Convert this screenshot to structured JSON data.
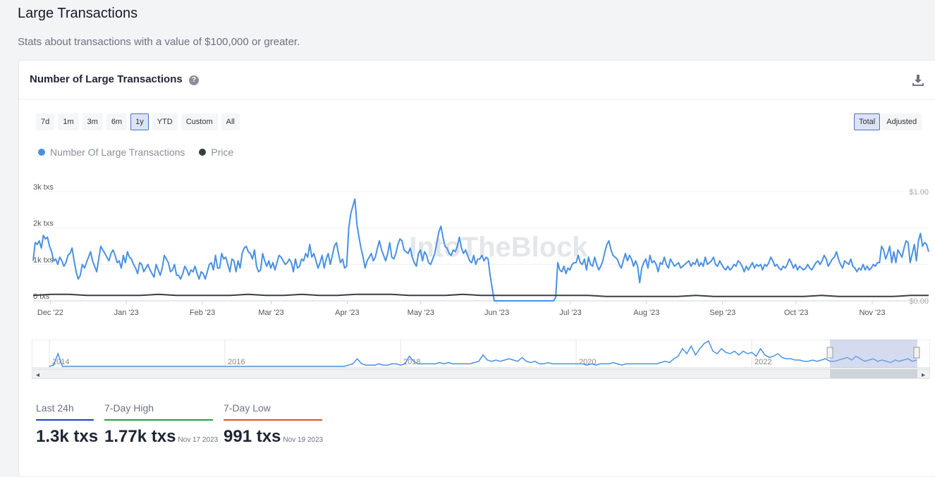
{
  "page": {
    "title": "Large Transactions",
    "subtitle": "Stats about transactions with a value of $100,000 or greater."
  },
  "card": {
    "title": "Number of Large Transactions",
    "help_icon": "question-circle-icon",
    "download_icon": "download-icon"
  },
  "ranges": [
    "7d",
    "1m",
    "3m",
    "6m",
    "1y",
    "YTD",
    "Custom",
    "All"
  ],
  "active_range": "1y",
  "modes": [
    "Total",
    "Adjusted"
  ],
  "active_mode": "Total",
  "watermark": "IntoTheBlock",
  "stats": {
    "last_24h": {
      "label": "Last 24h",
      "value": "1.3k txs",
      "color": "#1a3fd6"
    },
    "high_7d": {
      "label": "7-Day High",
      "value": "1.77k txs",
      "date": "Nov 17 2023",
      "color": "#2a9d3b"
    },
    "low_7d": {
      "label": "7-Day Low",
      "value": "991 txs",
      "date": "Nov 19 2023",
      "color": "#d9532c"
    }
  },
  "chart_data": {
    "type": "line",
    "legend": [
      {
        "name": "Number Of Large Transactions",
        "color": "#4a90e2"
      },
      {
        "name": "Price",
        "color": "#3a3d42"
      }
    ],
    "y_left": {
      "ticks": [
        "0 txs",
        "1k txs",
        "2k txs",
        "3k txs"
      ],
      "range": [
        0,
        3000
      ]
    },
    "y_right": {
      "ticks": [
        "$0.00",
        "$1.00"
      ],
      "range": [
        0,
        1
      ]
    },
    "x_ticks": [
      "Dec '22",
      "Jan '23",
      "Feb '23",
      "Mar '23",
      "Apr '23",
      "May '23",
      "Jun '23",
      "Jul '23",
      "Aug '23",
      "Sep '23",
      "Oct '23",
      "Nov '23"
    ],
    "series": [
      {
        "name": "Number Of Large Transactions",
        "color": "#4a90e2",
        "start": "2022-11-24",
        "end": "2023-11-24",
        "values": [
          1100,
          1600,
          1550,
          1650,
          1450,
          1800,
          1700,
          1750,
          1500,
          1350,
          1100,
          1150,
          1000,
          1200,
          1100,
          950,
          1050,
          1250,
          1300,
          1450,
          1100,
          800,
          600,
          700,
          1000,
          900,
          1050,
          1200,
          1350,
          1100,
          950,
          800,
          1150,
          1500,
          1400,
          1300,
          1200,
          1100,
          1300,
          1400,
          1250,
          1050,
          1100,
          900,
          1250,
          1050,
          1350,
          1200,
          1150,
          1000,
          900,
          750,
          1050,
          1000,
          800,
          900,
          1000,
          850,
          750,
          650,
          1000,
          850,
          700,
          900,
          1250,
          1150,
          1050,
          800,
          850,
          1000,
          700,
          700,
          600,
          750,
          950,
          850,
          700,
          850,
          800,
          950,
          750,
          600,
          800,
          750,
          600,
          800,
          1000,
          1050,
          850,
          1250,
          900,
          900,
          1300,
          1150,
          1200,
          1000,
          800,
          1150,
          1100,
          800,
          1100,
          900,
          1300,
          1450,
          1500,
          1350,
          1300,
          1150,
          1400,
          950,
          800,
          850,
          1300,
          1100,
          950,
          1100,
          900,
          1050,
          850,
          1050,
          1250,
          1200,
          1100,
          1000,
          1050,
          1150,
          1050,
          800,
          1150,
          900,
          950,
          1150,
          1100,
          1300,
          1200,
          1550,
          1200,
          1300,
          1100,
          900,
          1050,
          1250,
          900,
          1150,
          1300,
          1000,
          1250,
          1500,
          1600,
          1300,
          1050,
          1150,
          900,
          950,
          2000,
          2400,
          2600,
          2800,
          2100,
          1750,
          1450,
          1200,
          900,
          1100,
          1200,
          1300,
          1100,
          1200,
          1450,
          1650,
          1400,
          1250,
          1100,
          1300,
          1600,
          1200,
          1150,
          1300,
          1550,
          1700,
          1650,
          1400,
          1350,
          1300,
          1450,
          1200,
          1050,
          950,
          1300,
          1400,
          1100,
          1350,
          1250,
          1050,
          1000,
          1150,
          1300,
          1600,
          1900,
          2050,
          1750,
          1500,
          1450,
          1300,
          1250,
          1400,
          1350,
          1500,
          1750,
          1450,
          1300,
          1400,
          1250,
          1100,
          1050,
          1250,
          1000,
          1150,
          1150,
          1250,
          1100,
          1200,
          1150,
          700,
          350,
          0,
          0,
          0,
          0,
          0,
          0,
          0,
          0,
          0,
          0,
          0,
          0,
          0,
          0,
          0,
          0,
          0,
          0,
          0,
          0,
          0,
          0,
          0,
          0,
          0,
          0,
          0,
          0,
          0,
          0,
          100,
          1050,
          850,
          800,
          950,
          750,
          900,
          850,
          1000,
          1050,
          1050,
          1250,
          1050,
          1000,
          1150,
          850,
          1200,
          1000,
          950,
          1200,
          1000,
          850,
          950,
          1100,
          1350,
          1550,
          1650,
          1400,
          1250,
          1200,
          1150,
          1000,
          900,
          1100,
          1300,
          1100,
          1250,
          1150,
          950,
          1100,
          950,
          500,
          900,
          1050,
          1150,
          900,
          1250,
          1050,
          1100,
          1000,
          800,
          1050,
          1000,
          1200,
          1000,
          900,
          1150,
          1050,
          950,
          1000,
          1050,
          900,
          950,
          1000,
          1050,
          1100,
          950,
          1050,
          1000,
          1150,
          950,
          1050,
          950,
          1200,
          1000,
          1050,
          1100,
          1200,
          1000,
          950,
          1100,
          1000,
          900,
          850,
          950,
          850,
          900,
          1000,
          950,
          1100,
          1050,
          950,
          800,
          950,
          850,
          950,
          1050,
          900,
          1000,
          950,
          1000,
          850,
          1000,
          950,
          1050,
          1200,
          1100,
          950,
          1000,
          900,
          850,
          950,
          900,
          1000,
          1150,
          1050,
          900,
          1000,
          850,
          950,
          900,
          850,
          900,
          1000,
          900,
          850,
          950,
          1050,
          1100,
          1000,
          1100,
          1250,
          1150,
          950,
          1050,
          1150,
          1200,
          1350,
          1150,
          1000,
          900,
          1100,
          1050,
          1000,
          1150,
          950,
          900,
          800,
          900,
          850,
          1000,
          850,
          950,
          850,
          900,
          1000,
          950,
          1050,
          1050,
          1500,
          1400,
          1150,
          1300,
          1500,
          1050,
          1350,
          1050,
          1400,
          1300,
          1200,
          1450,
          1650,
          1600,
          1050,
          1300,
          1550,
          1100,
          1650,
          1850,
          1500,
          1600,
          1550,
          1350
        ]
      },
      {
        "name": "Price",
        "color": "#3a3d42",
        "values": [
          0.05,
          0.06,
          0.06,
          0.05,
          0.05,
          0.05,
          0.05,
          0.06,
          0.05,
          0.05,
          0.05,
          0.05,
          0.06,
          0.05,
          0.05,
          0.06,
          0.05,
          0.05,
          0.06,
          0.06,
          0.06,
          0.05,
          0.05,
          0.05,
          0.06,
          0.05,
          0.05,
          0.05,
          0.05,
          0.05,
          0.05,
          0.05,
          0.04,
          0.04,
          0.04,
          0.04,
          0.04,
          0.05,
          0.04,
          0.04,
          0.04,
          0.04,
          0.04,
          0.04,
          0.05,
          0.04,
          0.04,
          0.04,
          0.04,
          0.05,
          0.05
        ]
      }
    ]
  },
  "navigator": {
    "years": [
      "2014",
      "2016",
      "2018",
      "2020",
      "2022"
    ],
    "selection": "1y"
  }
}
